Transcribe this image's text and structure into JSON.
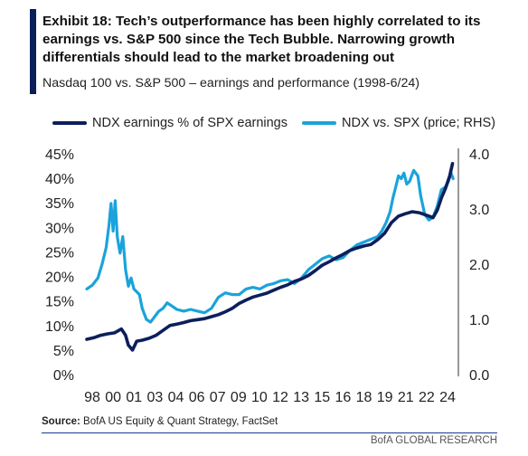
{
  "header": {
    "title": "Exhibit 18: Tech’s outperformance has been highly correlated to its earnings vs. S&P 500 since the Tech Bubble. Narrowing growth differentials should lead to the market broadening out",
    "subtitle": "Nasdaq 100 vs. S&P 500 – earnings and performance (1998-6/24)"
  },
  "footer": {
    "source_label": "Source:",
    "source_text": "BofA US Equity & Quant Strategy, FactSet",
    "brand": "BofA GLOBAL RESEARCH"
  },
  "colors": {
    "earnings": "#0c1f5c",
    "price": "#1aa3dc",
    "brand_bar": "#0a1e5a"
  },
  "chart_data": {
    "type": "line",
    "title": "",
    "xlabel": "",
    "ylabel": "",
    "x_ticks": [
      "98",
      "00",
      "01",
      "03",
      "04",
      "06",
      "07",
      "09",
      "10",
      "12",
      "13",
      "15",
      "16",
      "18",
      "19",
      "21",
      "22",
      "24"
    ],
    "x_range": [
      1998.0,
      2024.5
    ],
    "y_left": {
      "ticks": [
        "0%",
        "5%",
        "10%",
        "15%",
        "20%",
        "25%",
        "30%",
        "35%",
        "40%",
        "45%"
      ],
      "range": [
        0,
        45
      ],
      "unit": "%"
    },
    "y_right": {
      "ticks": [
        "0.0",
        "1.0",
        "2.0",
        "3.0",
        "4.0"
      ],
      "range": [
        0,
        4.0
      ]
    },
    "grid": false,
    "legend": "top",
    "series": [
      {
        "name": "NDX earnings % of SPX earnings",
        "axis": "left",
        "points": [
          [
            1998.0,
            7.2
          ],
          [
            1998.5,
            7.5
          ],
          [
            1999.0,
            8.0
          ],
          [
            1999.5,
            8.3
          ],
          [
            2000.0,
            8.5
          ],
          [
            2000.5,
            9.3
          ],
          [
            2000.8,
            8.0
          ],
          [
            2001.0,
            6.0
          ],
          [
            2001.3,
            5.0
          ],
          [
            2001.6,
            6.8
          ],
          [
            2002.0,
            7.0
          ],
          [
            2002.5,
            7.4
          ],
          [
            2003.0,
            8.0
          ],
          [
            2003.5,
            9.0
          ],
          [
            2004.0,
            10.0
          ],
          [
            2004.5,
            10.3
          ],
          [
            2005.0,
            10.6
          ],
          [
            2005.5,
            11.0
          ],
          [
            2006.0,
            11.2
          ],
          [
            2006.5,
            11.4
          ],
          [
            2007.0,
            11.8
          ],
          [
            2007.5,
            12.2
          ],
          [
            2008.0,
            12.8
          ],
          [
            2008.5,
            13.5
          ],
          [
            2009.0,
            14.5
          ],
          [
            2009.5,
            15.2
          ],
          [
            2010.0,
            15.8
          ],
          [
            2010.5,
            16.2
          ],
          [
            2011.0,
            16.6
          ],
          [
            2011.5,
            17.2
          ],
          [
            2012.0,
            17.8
          ],
          [
            2012.5,
            18.3
          ],
          [
            2013.0,
            19.0
          ],
          [
            2013.5,
            19.5
          ],
          [
            2014.0,
            20.2
          ],
          [
            2014.5,
            21.2
          ],
          [
            2015.0,
            22.3
          ],
          [
            2015.5,
            23.0
          ],
          [
            2016.0,
            23.8
          ],
          [
            2016.5,
            24.5
          ],
          [
            2017.0,
            25.3
          ],
          [
            2017.5,
            25.8
          ],
          [
            2018.0,
            26.2
          ],
          [
            2018.5,
            26.5
          ],
          [
            2019.0,
            27.5
          ],
          [
            2019.5,
            28.8
          ],
          [
            2020.0,
            31.0
          ],
          [
            2020.5,
            32.3
          ],
          [
            2021.0,
            32.8
          ],
          [
            2021.5,
            33.2
          ],
          [
            2022.0,
            33.0
          ],
          [
            2022.5,
            32.5
          ],
          [
            2023.0,
            32.0
          ],
          [
            2023.3,
            33.5
          ],
          [
            2023.6,
            36.0
          ],
          [
            2023.9,
            38.0
          ],
          [
            2024.2,
            40.5
          ],
          [
            2024.4,
            43.0
          ]
        ]
      },
      {
        "name": "NDX vs. SPX (price; RHS)",
        "axis": "right",
        "points": [
          [
            1998.0,
            1.55
          ],
          [
            1998.4,
            1.62
          ],
          [
            1998.8,
            1.75
          ],
          [
            1999.1,
            2.0
          ],
          [
            1999.4,
            2.3
          ],
          [
            1999.6,
            2.7
          ],
          [
            1999.75,
            3.1
          ],
          [
            1999.9,
            2.6
          ],
          [
            2000.05,
            3.15
          ],
          [
            2000.2,
            2.5
          ],
          [
            2000.4,
            2.2
          ],
          [
            2000.6,
            2.5
          ],
          [
            2000.8,
            1.9
          ],
          [
            2001.0,
            1.6
          ],
          [
            2001.2,
            1.75
          ],
          [
            2001.4,
            1.55
          ],
          [
            2001.6,
            1.5
          ],
          [
            2001.8,
            1.45
          ],
          [
            2002.0,
            1.2
          ],
          [
            2002.3,
            1.0
          ],
          [
            2002.6,
            0.95
          ],
          [
            2002.9,
            1.05
          ],
          [
            2003.2,
            1.15
          ],
          [
            2003.5,
            1.2
          ],
          [
            2003.8,
            1.3
          ],
          [
            2004.1,
            1.25
          ],
          [
            2004.5,
            1.18
          ],
          [
            2005.0,
            1.15
          ],
          [
            2005.5,
            1.18
          ],
          [
            2006.0,
            1.15
          ],
          [
            2006.5,
            1.12
          ],
          [
            2007.0,
            1.2
          ],
          [
            2007.5,
            1.4
          ],
          [
            2008.0,
            1.48
          ],
          [
            2008.5,
            1.45
          ],
          [
            2009.0,
            1.45
          ],
          [
            2009.5,
            1.55
          ],
          [
            2010.0,
            1.58
          ],
          [
            2010.5,
            1.55
          ],
          [
            2011.0,
            1.62
          ],
          [
            2011.5,
            1.65
          ],
          [
            2012.0,
            1.7
          ],
          [
            2012.5,
            1.72
          ],
          [
            2013.0,
            1.65
          ],
          [
            2013.5,
            1.75
          ],
          [
            2014.0,
            1.9
          ],
          [
            2014.5,
            2.0
          ],
          [
            2015.0,
            2.1
          ],
          [
            2015.5,
            2.15
          ],
          [
            2016.0,
            2.08
          ],
          [
            2016.5,
            2.12
          ],
          [
            2017.0,
            2.25
          ],
          [
            2017.5,
            2.35
          ],
          [
            2018.0,
            2.4
          ],
          [
            2018.5,
            2.45
          ],
          [
            2019.0,
            2.5
          ],
          [
            2019.3,
            2.6
          ],
          [
            2019.6,
            2.75
          ],
          [
            2019.9,
            2.95
          ],
          [
            2020.1,
            3.2
          ],
          [
            2020.3,
            3.4
          ],
          [
            2020.5,
            3.6
          ],
          [
            2020.7,
            3.55
          ],
          [
            2020.9,
            3.65
          ],
          [
            2021.1,
            3.45
          ],
          [
            2021.3,
            3.5
          ],
          [
            2021.6,
            3.7
          ],
          [
            2021.9,
            3.6
          ],
          [
            2022.1,
            3.25
          ],
          [
            2022.4,
            2.9
          ],
          [
            2022.7,
            2.8
          ],
          [
            2023.0,
            2.85
          ],
          [
            2023.3,
            3.05
          ],
          [
            2023.6,
            3.35
          ],
          [
            2023.9,
            3.4
          ],
          [
            2024.1,
            3.5
          ],
          [
            2024.3,
            3.65
          ],
          [
            2024.45,
            3.55
          ]
        ]
      }
    ]
  }
}
